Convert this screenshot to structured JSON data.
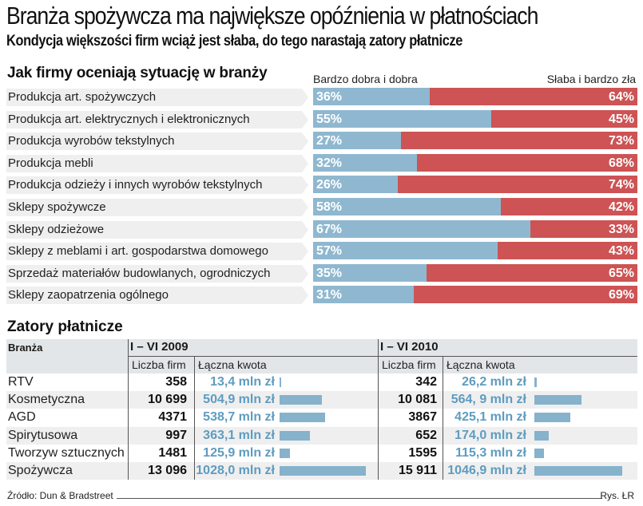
{
  "header": {
    "title": "Branża spożywcza ma największe opóźnienia w płatnościach",
    "subtitle": "Kondycja większości firm wciąż jest słaba, do tego narastają zatory płatnicze"
  },
  "colors": {
    "good": "#8fb8d0",
    "bad": "#cd5354",
    "amount_text": "#5e9cc0",
    "amount_bar": "#86b2cc"
  },
  "chart_data": [
    {
      "type": "bar",
      "orientation": "horizontal-stacked-100",
      "title": "Jak firmy oceniają sytuację w branży",
      "legend": [
        "Bardzo dobra i dobra",
        "Słaba i bardzo zła"
      ],
      "legend_placement": "top",
      "categories": [
        "Produkcja art. spożywczych",
        "Produkcja art. elektrycznych i elektronicznych",
        "Produkcja wyrobów tekstylnych",
        "Produkcja mebli",
        "Produkcja odzieży i innych wyrobów tekstylnych",
        "Sklepy spożywcze",
        "Sklepy odzieżowe",
        "Sklepy z meblami i art. gospodarstwa domowego",
        "Sprzedaż materiałów budowlanych, ogrodniczych",
        "Sklepy zaopatrzenia ogólnego"
      ],
      "series": [
        {
          "name": "Bardzo dobra i dobra",
          "values": [
            36,
            55,
            27,
            32,
            26,
            58,
            67,
            57,
            35,
            31
          ]
        },
        {
          "name": "Słaba i bardzo zła",
          "values": [
            64,
            45,
            73,
            68,
            74,
            42,
            33,
            43,
            65,
            69
          ]
        }
      ],
      "unit": "%",
      "xlim": [
        0,
        100
      ]
    },
    {
      "type": "table",
      "title": "Zatory płatnicze",
      "columns": {
        "industry": "Branża",
        "periods": [
          "I – VI 2009",
          "I – VI 2010"
        ],
        "count": "Liczba firm",
        "amount": "Łączna kwota"
      },
      "rows": [
        {
          "industry": "RTV",
          "p2009": {
            "count": "358",
            "amount": "13,4 mln zł",
            "value": 13.4
          },
          "p2010": {
            "count": "342",
            "amount": "26,2 mln zł",
            "value": 26.2
          }
        },
        {
          "industry": "Kosmetyczna",
          "p2009": {
            "count": "10 699",
            "amount": "504,9 mln zł",
            "value": 504.9
          },
          "p2010": {
            "count": "10 081",
            "amount": "564, 9 mln zł",
            "value": 564.9
          }
        },
        {
          "industry": "AGD",
          "p2009": {
            "count": "4371",
            "amount": "538,7 mln zł",
            "value": 538.7
          },
          "p2010": {
            "count": "3867",
            "amount": "425,1 mln zł",
            "value": 425.1
          }
        },
        {
          "industry": "Spirytusowa",
          "p2009": {
            "count": "997",
            "amount": "363,1 mln zł",
            "value": 363.1
          },
          "p2010": {
            "count": "652",
            "amount": "174,0 mln zł",
            "value": 174.0
          }
        },
        {
          "industry": "Tworzyw sztucznych",
          "p2009": {
            "count": "1481",
            "amount": "125,9 mln zł",
            "value": 125.9
          },
          "p2010": {
            "count": "1595",
            "amount": "115,3 mln zł",
            "value": 115.3
          }
        },
        {
          "industry": "Spożywcza",
          "p2009": {
            "count": "13 096",
            "amount": "1028,0 mln zł",
            "value": 1028.0
          },
          "p2010": {
            "count": "15 911",
            "amount": "1046,9 mln zł",
            "value": 1046.9
          }
        }
      ],
      "amount_max": 1046.9
    }
  ],
  "footer": {
    "source": "Źródło: Dun & Bradstreet",
    "credit": "Rys. ŁR"
  }
}
